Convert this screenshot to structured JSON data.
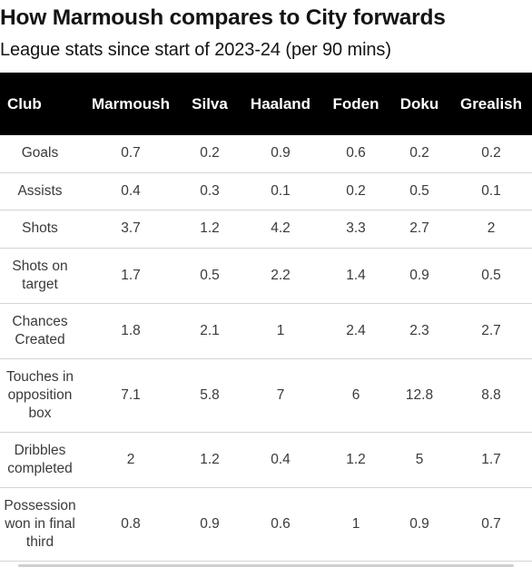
{
  "title": "How Marmoush compares to City forwards",
  "subtitle": "League stats since start of 2023-24 (per 90 mins)",
  "chart_data": {
    "type": "table",
    "title": "How Marmoush compares to City forwards",
    "subtitle": "League stats since start of 2023-24 (per 90 mins)",
    "columns": [
      "Club",
      "Marmoush",
      "Silva",
      "Haaland",
      "Foden",
      "Doku",
      "Grealish"
    ],
    "rows": [
      {
        "metric": "Goals",
        "values": [
          "0.7",
          "0.2",
          "0.9",
          "0.6",
          "0.2",
          "0.2"
        ]
      },
      {
        "metric": "Assists",
        "values": [
          "0.4",
          "0.3",
          "0.1",
          "0.2",
          "0.5",
          "0.1"
        ]
      },
      {
        "metric": "Shots",
        "values": [
          "3.7",
          "1.2",
          "4.2",
          "3.3",
          "2.7",
          "2"
        ]
      },
      {
        "metric": "Shots on target",
        "values": [
          "1.7",
          "0.5",
          "2.2",
          "1.4",
          "0.9",
          "0.5"
        ]
      },
      {
        "metric": "Chances Created",
        "values": [
          "1.8",
          "2.1",
          "1",
          "2.4",
          "2.3",
          "2.7"
        ]
      },
      {
        "metric": "Touches in opposition box",
        "values": [
          "7.1",
          "5.8",
          "7",
          "6",
          "12.8",
          "8.8"
        ]
      },
      {
        "metric": "Dribbles completed",
        "values": [
          "2",
          "1.2",
          "0.4",
          "1.2",
          "5",
          "1.7"
        ]
      },
      {
        "metric": "Possession won in final third",
        "values": [
          "0.8",
          "0.9",
          "0.6",
          "1",
          "0.9",
          "0.7"
        ]
      }
    ]
  }
}
